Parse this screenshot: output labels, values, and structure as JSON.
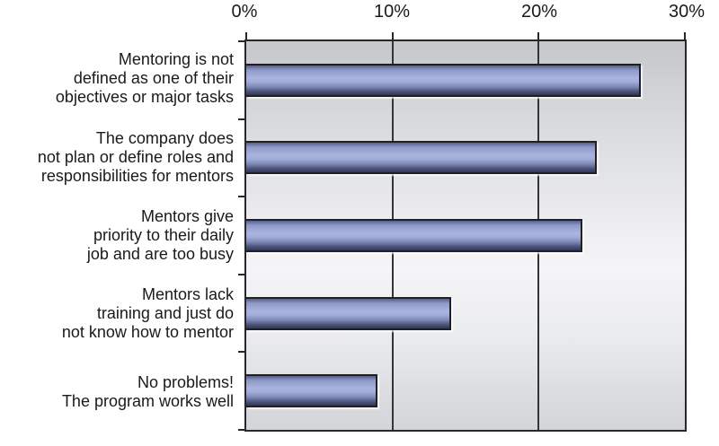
{
  "chart_data": {
    "type": "bar",
    "orientation": "horizontal",
    "title": "",
    "xlabel": "",
    "ylabel": "",
    "categories": [
      "Mentoring is not\ndefined as one of their\nobjectives or major tasks",
      "The company does\nnot plan or define roles and\nresponsibilities for mentors",
      "Mentors give\npriority to their daily\njob and are too busy",
      "Mentors lack\ntraining and just do\nnot know how to mentor",
      "No problems!\nThe program works well"
    ],
    "values": [
      27,
      24,
      23,
      14,
      9
    ],
    "value_unit": "%",
    "x_tick_labels": [
      "0%",
      "10%",
      "20%",
      "30%"
    ],
    "x_tick_values": [
      0,
      10,
      20,
      30
    ],
    "xlim": [
      0,
      30
    ],
    "grid": "vertical gridlines at 10% and 20%",
    "legend": "none",
    "axis_position": "top"
  },
  "style": {
    "bar_color_mid": "#aab4de",
    "bar_color_dark": "#303752",
    "bar_border_color": "#1f2027",
    "plot_bg_top": "#c5c7cb",
    "plot_bg_light": "#f5f5f7",
    "plot_bg_bottom": "#d3d4d8",
    "axis_color": "#26262b",
    "text_color": "#1a1a1a",
    "page_bg": "#ffffff"
  }
}
